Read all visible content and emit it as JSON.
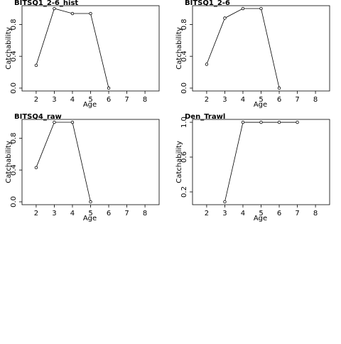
{
  "chart_data": [
    {
      "type": "line",
      "title": "BITSQ1_2-6_hist",
      "x_label": "Age",
      "y_label": "Catchability",
      "x": [
        2,
        3,
        4,
        5,
        6
      ],
      "values": [
        0.286,
        1.0,
        0.9375,
        0.9375,
        0.0
      ],
      "xlim": [
        1.22,
        8.78
      ],
      "ylim": [
        -0.036,
        1.036
      ],
      "xticks": [
        2,
        3,
        4,
        5,
        6,
        7,
        8
      ],
      "yticks": [
        {
          "value": 0,
          "label": "0.0"
        },
        0.4,
        0.8
      ],
      "color": "#000000"
    },
    {
      "type": "line",
      "title": "BITSQ1_2-6",
      "x_label": "Age",
      "y_label": "Catchability",
      "x": [
        2,
        3,
        4,
        5,
        6
      ],
      "values": [
        0.3,
        0.88,
        1.0,
        1.0,
        0.0
      ],
      "xlim": [
        1.22,
        8.78
      ],
      "ylim": [
        -0.036,
        1.036
      ],
      "xticks": [
        2,
        3,
        4,
        5,
        6,
        7,
        8
      ],
      "yticks": [
        {
          "value": 0,
          "label": "0.0"
        },
        0.4,
        0.8
      ],
      "color": "#000000"
    },
    {
      "type": "line",
      "title": "BITSQ4_raw",
      "x_label": "Age",
      "y_label": "Catchability",
      "x": [
        2,
        3,
        4,
        5
      ],
      "values": [
        0.43,
        1.0,
        1.0,
        0.0
      ],
      "xlim": [
        1.22,
        8.78
      ],
      "ylim": [
        -0.036,
        1.036
      ],
      "xticks": [
        2,
        3,
        4,
        5,
        6,
        7,
        8
      ],
      "yticks": [
        {
          "value": 0,
          "label": "0.0"
        },
        0.4,
        0.8
      ],
      "color": "#000000"
    },
    {
      "type": "line",
      "title": "Den_Trawl",
      "x_label": "Age",
      "y_label": "Catchability",
      "x": [
        3,
        4,
        5,
        6,
        7
      ],
      "values": [
        0.086,
        1.0,
        1.0,
        1.0,
        1.0
      ],
      "xlim": [
        1.22,
        8.78
      ],
      "ylim": [
        0.053,
        1.033
      ],
      "xticks": [
        2,
        3,
        4,
        5,
        6,
        7,
        8
      ],
      "yticks": [
        0.2,
        0.6,
        {
          "value": 1,
          "label": "1.0"
        }
      ],
      "color": "#000000"
    }
  ]
}
